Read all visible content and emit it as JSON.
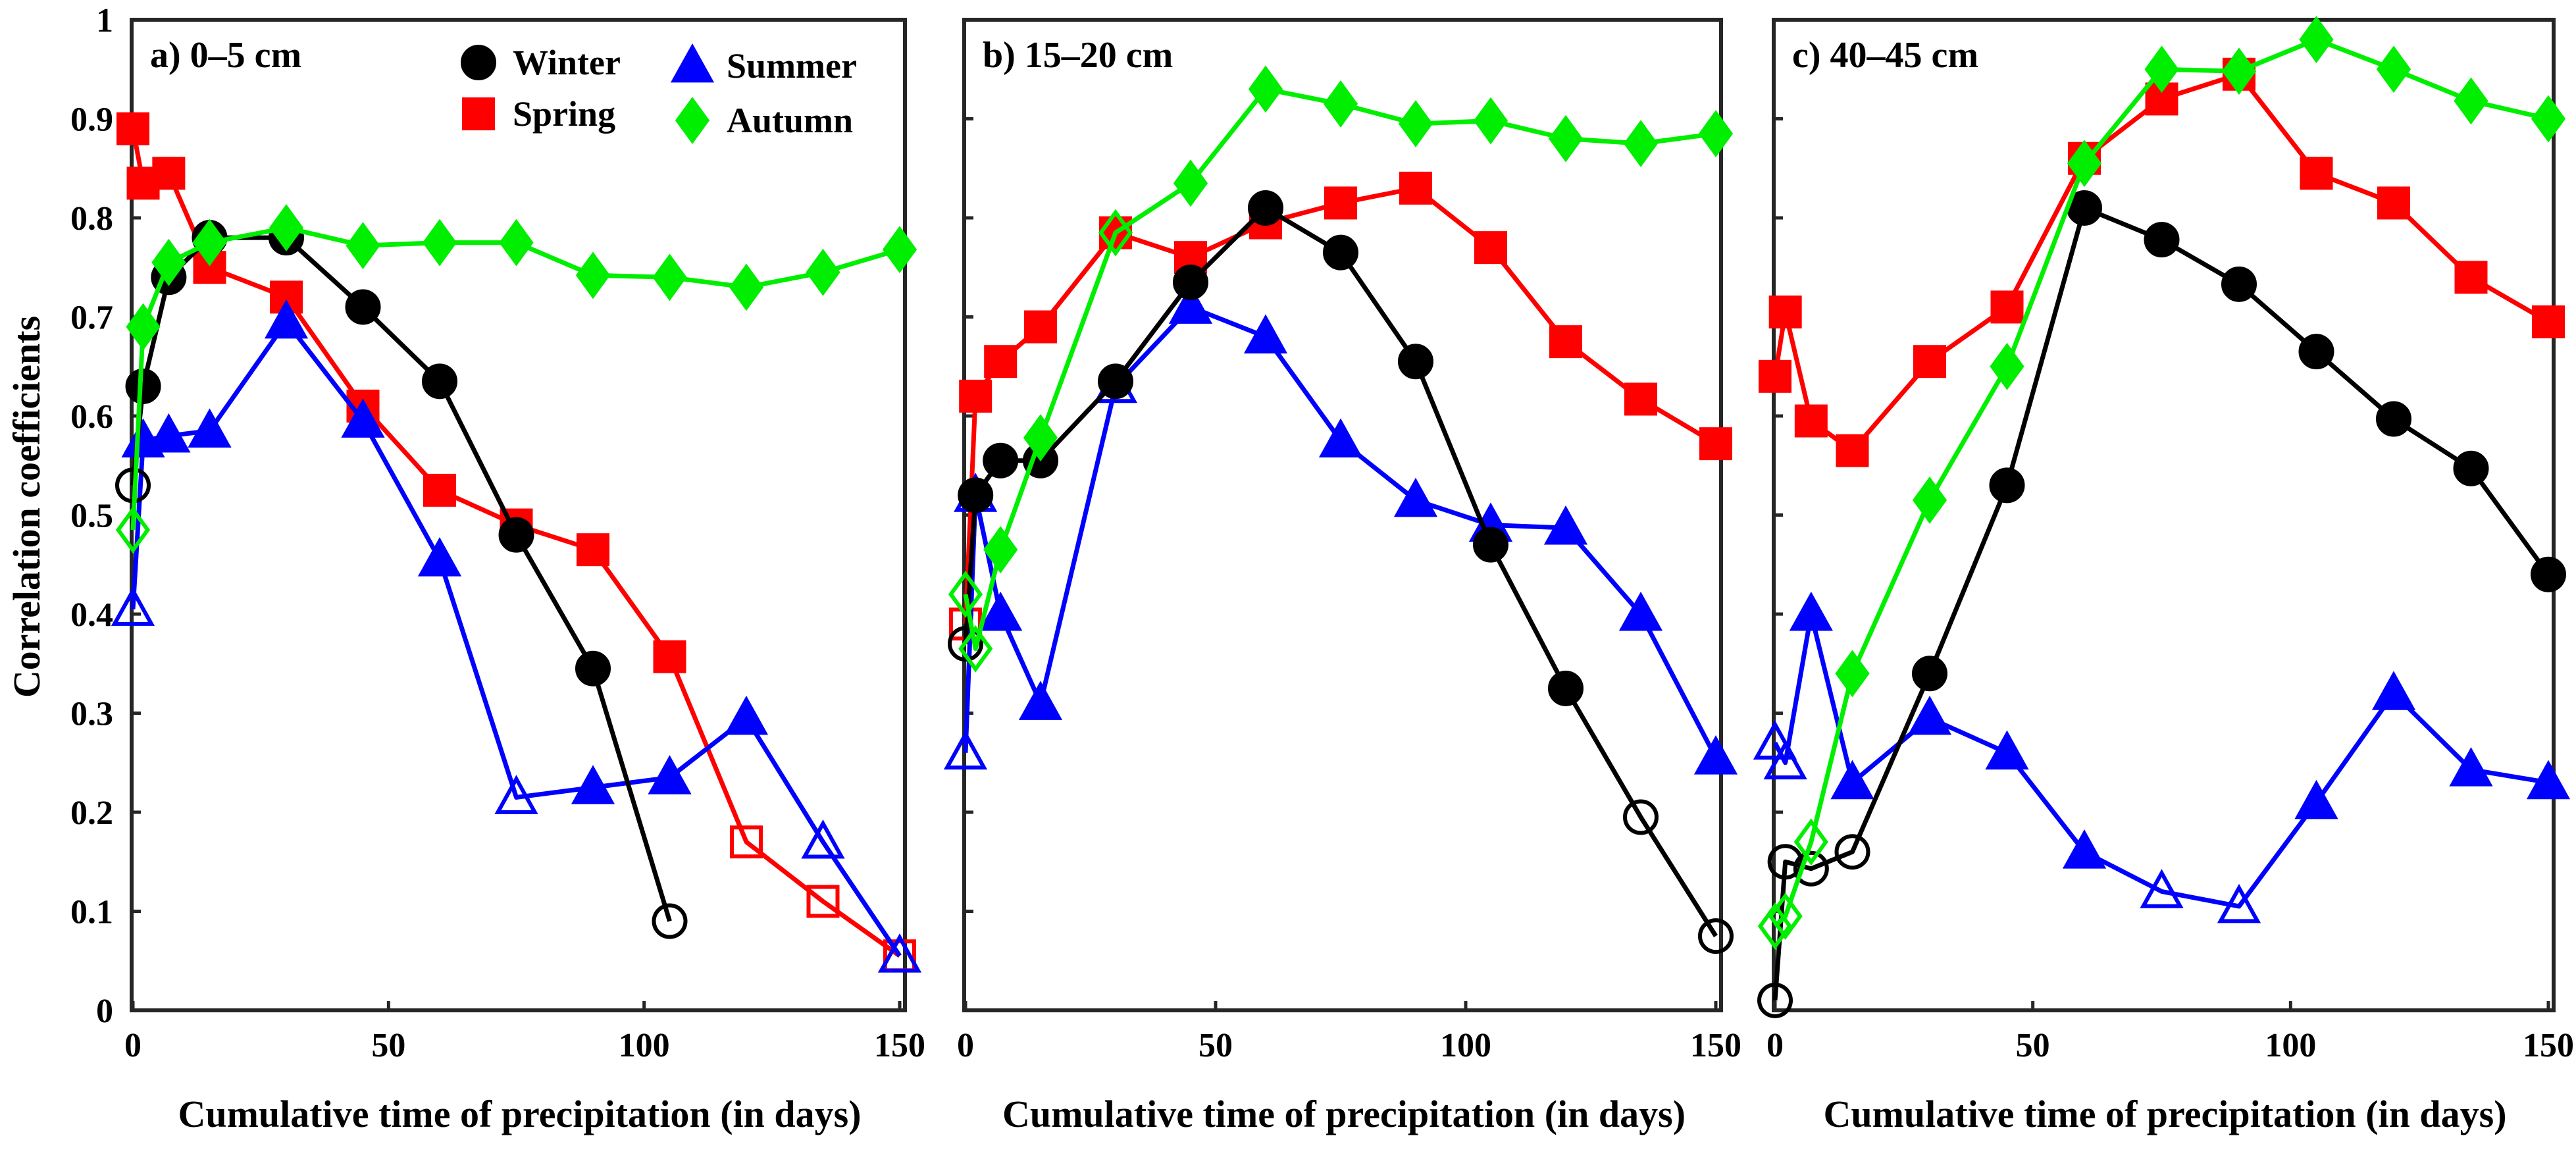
{
  "y_axis_label": "Correlation coefficients",
  "y_ticks": [
    "0",
    "0.1",
    "0.2",
    "0.3",
    "0.4",
    "0.5",
    "0.6",
    "0.7",
    "0.8",
    "0.9",
    "1"
  ],
  "x_ticks": [
    "0",
    "50",
    "100",
    "150"
  ],
  "legend": {
    "winter": "Winter",
    "spring": "Spring",
    "summer": "Summer",
    "autumn": "Autumn"
  },
  "colors": {
    "winter": "#000000",
    "spring": "#ff0000",
    "summer": "#0000ff",
    "autumn": "#00ee00"
  },
  "chart_data": [
    {
      "type": "line",
      "title": "a) 0–5 cm",
      "xlabel": "Cumulative time of precipitation (in days)",
      "ylabel": "Correlation coefficients",
      "xlim": [
        0,
        150
      ],
      "ylim": [
        0,
        1
      ],
      "x": [
        0,
        2,
        7,
        15,
        30,
        45,
        60,
        75,
        90,
        105,
        120,
        135,
        150
      ],
      "series": [
        {
          "name": "Winter",
          "key": "winter",
          "values": [
            0.53,
            0.63,
            0.74,
            0.78,
            0.78,
            0.71,
            0.635,
            0.48,
            0.345,
            0.09,
            null,
            null,
            null
          ],
          "filled": [
            false,
            true,
            true,
            true,
            true,
            true,
            true,
            true,
            true,
            false,
            false,
            false,
            false
          ]
        },
        {
          "name": "Spring",
          "key": "spring",
          "values": [
            0.89,
            0.835,
            0.845,
            0.75,
            0.72,
            0.61,
            0.525,
            0.49,
            0.465,
            0.357,
            0.17,
            0.11,
            0.055
          ],
          "filled": [
            true,
            true,
            true,
            true,
            true,
            true,
            true,
            true,
            true,
            true,
            false,
            false,
            false
          ]
        },
        {
          "name": "Summer",
          "key": "summer",
          "values": [
            0.405,
            0.575,
            0.58,
            0.585,
            0.695,
            0.595,
            0.455,
            0.215,
            0.225,
            0.235,
            0.295,
            0.17,
            0.055
          ],
          "filled": [
            false,
            true,
            true,
            true,
            true,
            true,
            true,
            false,
            true,
            true,
            true,
            false,
            false
          ]
        },
        {
          "name": "Autumn",
          "key": "autumn",
          "values": [
            0.485,
            0.69,
            0.755,
            0.775,
            0.79,
            0.772,
            0.775,
            0.775,
            0.742,
            0.74,
            0.73,
            0.745,
            0.768
          ],
          "filled": [
            false,
            true,
            true,
            true,
            true,
            true,
            true,
            true,
            true,
            true,
            true,
            true,
            true
          ]
        }
      ]
    },
    {
      "type": "line",
      "title": "b) 15–20 cm",
      "xlabel": "Cumulative time of precipitation (in days)",
      "ylabel": "Correlation coefficients",
      "xlim": [
        0,
        150
      ],
      "ylim": [
        0,
        1
      ],
      "x": [
        0,
        2,
        7,
        15,
        30,
        45,
        60,
        75,
        90,
        105,
        120,
        135,
        150
      ],
      "series": [
        {
          "name": "Winter",
          "key": "winter",
          "values": [
            0.37,
            0.52,
            0.555,
            0.555,
            0.635,
            0.735,
            0.81,
            0.765,
            0.655,
            0.47,
            0.325,
            0.195,
            0.075
          ],
          "filled": [
            false,
            true,
            true,
            true,
            true,
            true,
            true,
            true,
            true,
            true,
            true,
            false,
            false
          ]
        },
        {
          "name": "Spring",
          "key": "spring",
          "values": [
            0.39,
            0.62,
            0.655,
            0.69,
            0.785,
            0.76,
            0.795,
            0.815,
            0.83,
            0.77,
            0.675,
            0.617,
            0.572
          ],
          "filled": [
            false,
            true,
            true,
            true,
            true,
            true,
            true,
            true,
            true,
            true,
            true,
            true,
            true
          ]
        },
        {
          "name": "Summer",
          "key": "summer",
          "values": [
            0.26,
            0.52,
            0.4,
            0.31,
            0.63,
            0.71,
            0.68,
            0.575,
            0.515,
            0.49,
            0.487,
            0.4,
            0.255
          ],
          "filled": [
            false,
            false,
            true,
            true,
            false,
            true,
            true,
            true,
            true,
            true,
            true,
            true,
            true
          ]
        },
        {
          "name": "Autumn",
          "key": "autumn",
          "values": [
            0.42,
            0.365,
            0.465,
            0.578,
            0.785,
            0.835,
            0.93,
            0.915,
            0.895,
            0.898,
            0.88,
            0.875,
            0.885
          ],
          "filled": [
            false,
            false,
            true,
            true,
            false,
            true,
            true,
            true,
            true,
            true,
            true,
            true,
            true
          ]
        }
      ]
    },
    {
      "type": "line",
      "title": "c) 40–45 cm",
      "xlabel": "Cumulative time of precipitation (in days)",
      "ylabel": "Correlation coefficients",
      "xlim": [
        0,
        150
      ],
      "ylim": [
        0,
        1
      ],
      "x": [
        0,
        2,
        7,
        15,
        30,
        45,
        60,
        75,
        90,
        105,
        120,
        135,
        150
      ],
      "series": [
        {
          "name": "Winter",
          "key": "winter",
          "values": [
            0.01,
            0.15,
            0.143,
            0.16,
            0.34,
            0.53,
            0.81,
            0.778,
            0.733,
            0.665,
            0.597,
            0.547,
            0.44
          ],
          "filled": [
            false,
            false,
            false,
            false,
            true,
            true,
            true,
            true,
            true,
            true,
            true,
            true,
            true
          ]
        },
        {
          "name": "Spring",
          "key": "spring",
          "values": [
            0.64,
            0.705,
            0.595,
            0.565,
            0.655,
            0.71,
            0.86,
            0.92,
            0.945,
            0.845,
            0.815,
            0.74,
            0.695
          ],
          "filled": [
            true,
            true,
            true,
            true,
            true,
            true,
            true,
            true,
            true,
            true,
            true,
            true,
            true
          ]
        },
        {
          "name": "Summer",
          "key": "summer",
          "values": [
            0.27,
            0.25,
            0.4,
            0.23,
            0.295,
            0.26,
            0.16,
            0.12,
            0.105,
            0.21,
            0.32,
            0.243,
            0.23
          ],
          "filled": [
            false,
            false,
            true,
            true,
            true,
            true,
            true,
            false,
            false,
            true,
            true,
            true,
            true
          ]
        },
        {
          "name": "Autumn",
          "key": "autumn",
          "values": [
            0.085,
            0.095,
            0.17,
            0.34,
            0.515,
            0.65,
            0.855,
            0.95,
            0.948,
            0.98,
            0.95,
            0.918,
            0.9
          ],
          "filled": [
            false,
            false,
            false,
            true,
            true,
            true,
            true,
            true,
            true,
            true,
            true,
            true,
            true
          ]
        }
      ]
    }
  ]
}
